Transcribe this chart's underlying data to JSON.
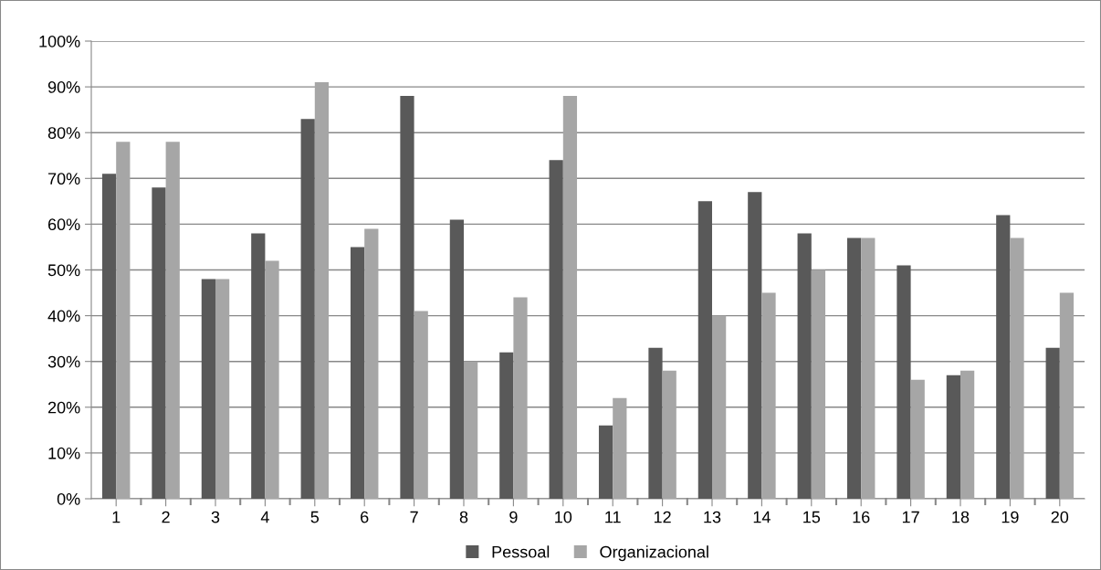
{
  "chart_data": {
    "type": "bar",
    "categories": [
      "1",
      "2",
      "3",
      "4",
      "5",
      "6",
      "7",
      "8",
      "9",
      "10",
      "11",
      "12",
      "13",
      "14",
      "15",
      "16",
      "17",
      "18",
      "19",
      "20"
    ],
    "series": [
      {
        "name": "Pessoal",
        "color": "#595959",
        "values": [
          71,
          68,
          48,
          58,
          83,
          55,
          88,
          61,
          32,
          74,
          16,
          33,
          65,
          67,
          58,
          57,
          51,
          27,
          62,
          33
        ]
      },
      {
        "name": "Organizacional",
        "color": "#a6a6a6",
        "values": [
          78,
          78,
          48,
          52,
          91,
          59,
          41,
          30,
          44,
          88,
          22,
          28,
          40,
          45,
          50,
          57,
          26,
          28,
          57,
          45
        ]
      }
    ],
    "ylim": [
      0,
      100
    ],
    "yticks": [
      {
        "value": 0,
        "label": "0%"
      },
      {
        "value": 10,
        "label": "10%"
      },
      {
        "value": 20,
        "label": "20%"
      },
      {
        "value": 30,
        "label": "30%"
      },
      {
        "value": 40,
        "label": "40%"
      },
      {
        "value": 50,
        "label": "50%"
      },
      {
        "value": 60,
        "label": "60%"
      },
      {
        "value": 70,
        "label": "70%"
      },
      {
        "value": 80,
        "label": "80%"
      },
      {
        "value": 90,
        "label": "90%"
      },
      {
        "value": 100,
        "label": "100%"
      }
    ],
    "grid": "y",
    "legend": "bottom"
  }
}
